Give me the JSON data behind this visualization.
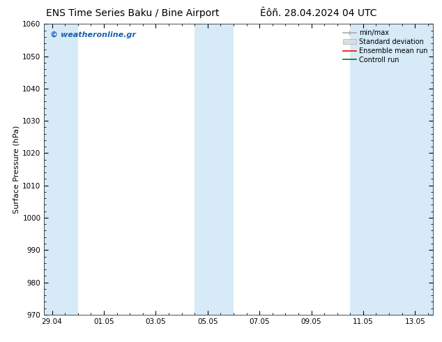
{
  "title_left": "ENS Time Series Baku / Bine Airport",
  "title_right": "Êôñ. 28.04.2024 04 UTC",
  "ylabel": "Surface Pressure (hPa)",
  "ylim": [
    970,
    1060
  ],
  "yticks": [
    970,
    980,
    990,
    1000,
    1010,
    1020,
    1030,
    1040,
    1050,
    1060
  ],
  "xtick_labels": [
    "29.04",
    "01.05",
    "03.05",
    "05.05",
    "07.05",
    "09.05",
    "11.05",
    "13.05"
  ],
  "xtick_positions": [
    0,
    2,
    4,
    6,
    8,
    10,
    12,
    14
  ],
  "xlim": [
    -0.3,
    14.7
  ],
  "shaded_bands": [
    {
      "x_start": -0.3,
      "x_end": 1.0
    },
    {
      "x_start": 5.5,
      "x_end": 7.0
    },
    {
      "x_start": 11.5,
      "x_end": 14.7
    }
  ],
  "shade_color": "#d6eaf8",
  "background_color": "#ffffff",
  "watermark_text": "© weatheronline.gr",
  "watermark_color": "#1a5fa8",
  "legend_labels": [
    "min/max",
    "Standard deviation",
    "Ensemble mean run",
    "Controll run"
  ],
  "legend_line_colors": [
    "#aaaaaa",
    "#cccccc",
    "#ff0000",
    "#008000"
  ],
  "title_fontsize": 10,
  "ylabel_fontsize": 8,
  "tick_fontsize": 7.5,
  "legend_fontsize": 7,
  "watermark_fontsize": 8
}
